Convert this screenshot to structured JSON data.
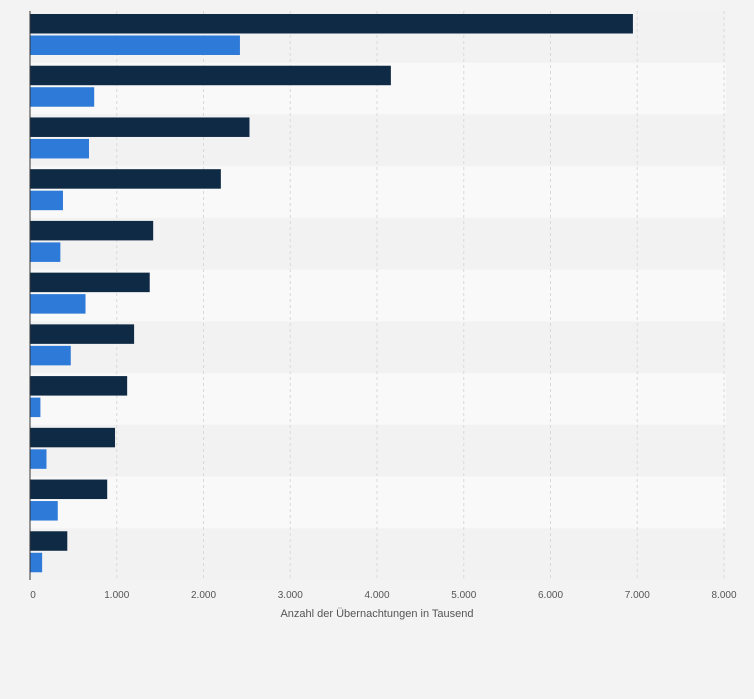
{
  "colors": {
    "page_bg": "#f3f3f3",
    "band_even": "#f2f2f2",
    "band_odd": "#f9f9f9",
    "series_1": "#0f2a44",
    "series_2": "#2e7ad9",
    "grid": "#d9d9d9",
    "axis": "#333333",
    "tick_text": "#555555"
  },
  "chart_data": {
    "type": "bar",
    "orientation": "horizontal",
    "categories": [
      "",
      "",
      "",
      "",
      "",
      "",
      "",
      "",
      "",
      "",
      ""
    ],
    "series": [
      {
        "name": "",
        "values": [
          6950,
          4160,
          2530,
          2200,
          1420,
          1380,
          1200,
          1120,
          980,
          890,
          430
        ]
      },
      {
        "name": "",
        "values": [
          2420,
          740,
          680,
          380,
          350,
          640,
          470,
          120,
          190,
          320,
          140
        ]
      }
    ],
    "xlim": [
      0,
      8000
    ],
    "xticks": [
      0,
      1000,
      2000,
      3000,
      4000,
      5000,
      6000,
      7000,
      8000
    ],
    "xtick_labels": [
      "0",
      "1.000",
      "2.000",
      "3.000",
      "4.000",
      "5.000",
      "6.000",
      "7.000",
      "8.000"
    ],
    "xlabel": "Anzahl der Übernachtungen in Tausend",
    "ylabel": "",
    "title": "",
    "grid": true
  }
}
